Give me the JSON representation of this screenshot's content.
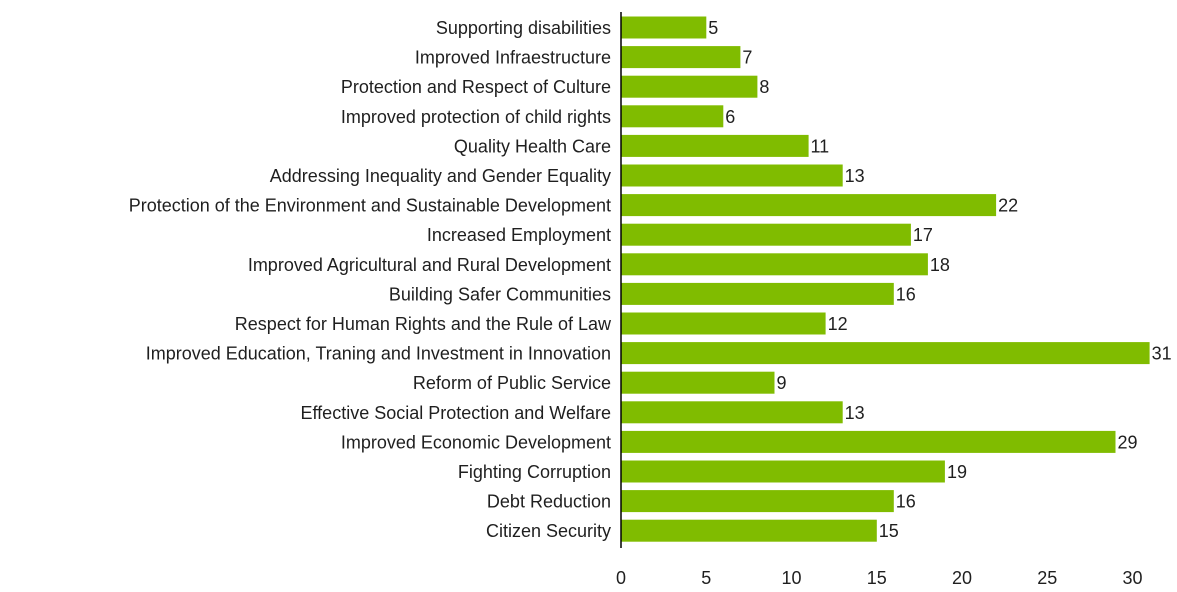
{
  "chart_data": {
    "type": "bar",
    "orientation": "horizontal",
    "title": "",
    "xlabel": "",
    "ylabel": "",
    "xlim": [
      0,
      31
    ],
    "x_ticks": [
      0,
      5,
      10,
      15,
      20,
      25,
      30
    ],
    "grid": false,
    "legend": "none",
    "bar_color": "#80bc00",
    "categories": [
      "Supporting disabilities",
      "Improved Infraestructure",
      "Protection and Respect of Culture",
      "Improved protection of child rights",
      "Quality Health Care",
      "Addressing Inequality and Gender Equality",
      "Protection of the Environment and Sustainable Development",
      "Increased Employment",
      "Improved Agricultural and Rural Development",
      "Building Safer Communities",
      "Respect for Human Rights and the Rule of Law",
      "Improved Education, Traning and Investment in Innovation",
      "Reform of Public Service",
      "Effective Social Protection and Welfare",
      "Improved Economic Development",
      "Fighting Corruption",
      "Debt Reduction",
      "Citizen Security"
    ],
    "values": [
      5,
      7,
      8,
      6,
      11,
      13,
      22,
      17,
      18,
      16,
      12,
      31,
      9,
      13,
      29,
      19,
      16,
      15
    ]
  }
}
